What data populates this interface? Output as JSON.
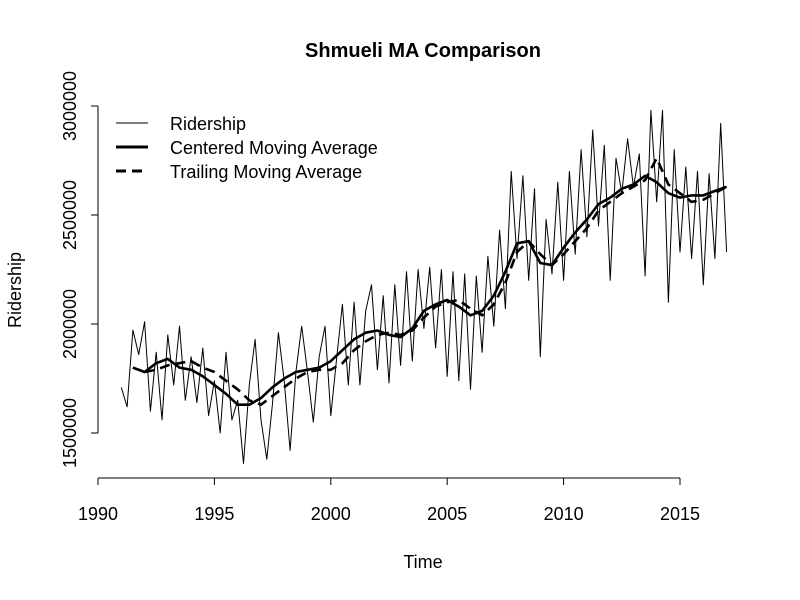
{
  "chart_data": {
    "type": "line",
    "title": "Shmueli MA Comparison",
    "xlabel": "Time",
    "ylabel": "Ridership",
    "xlim": [
      1990,
      2017.5
    ],
    "ylim": [
      1300000,
      3000000
    ],
    "x_ticks": [
      "1990",
      "1995",
      "2000",
      "2005",
      "2010",
      "2015"
    ],
    "y_ticks": [
      "1500000",
      "2000000",
      "2500000",
      "3000000"
    ],
    "legend_position": "top-left",
    "grid": false,
    "series": [
      {
        "name": "Ridership",
        "style": "solid-thin",
        "x": [
          1991.0,
          1991.25,
          1991.5,
          1991.75,
          1992.0,
          1992.25,
          1992.5,
          1992.75,
          1993.0,
          1993.25,
          1993.5,
          1993.75,
          1994.0,
          1994.25,
          1994.5,
          1994.75,
          1995.0,
          1995.25,
          1995.5,
          1995.75,
          1996.0,
          1996.25,
          1996.5,
          1996.75,
          1997.0,
          1997.25,
          1997.5,
          1997.75,
          1998.0,
          1998.25,
          1998.5,
          1998.75,
          1999.0,
          1999.25,
          1999.5,
          1999.75,
          2000.0,
          2000.25,
          2000.5,
          2000.75,
          2001.0,
          2001.25,
          2001.5,
          2001.75,
          2002.0,
          2002.25,
          2002.5,
          2002.75,
          2003.0,
          2003.25,
          2003.5,
          2003.75,
          2004.0,
          2004.25,
          2004.5,
          2004.75,
          2005.0,
          2005.25,
          2005.5,
          2005.75,
          2006.0,
          2006.25,
          2006.5,
          2006.75,
          2007.0,
          2007.25,
          2007.5,
          2007.75,
          2008.0,
          2008.25,
          2008.5,
          2008.75,
          2009.0,
          2009.25,
          2009.5,
          2009.75,
          2010.0,
          2010.25,
          2010.5,
          2010.75,
          2011.0,
          2011.25,
          2011.5,
          2011.75,
          2012.0,
          2012.25,
          2012.5,
          2012.75,
          2013.0,
          2013.25,
          2013.5,
          2013.75,
          2014.0,
          2014.25,
          2014.5,
          2014.75,
          2015.0,
          2015.25,
          2015.5,
          2015.75,
          2016.0,
          2016.25,
          2016.5,
          2016.75,
          2017.0
        ],
        "values": [
          1709000,
          1620000,
          1972000,
          1860000,
          2010000,
          1600000,
          1870000,
          1560000,
          1950000,
          1720000,
          1990000,
          1650000,
          1850000,
          1640000,
          1890000,
          1580000,
          1740000,
          1500000,
          1870000,
          1560000,
          1650000,
          1360000,
          1720000,
          1930000,
          1560000,
          1380000,
          1640000,
          1960000,
          1740000,
          1420000,
          1780000,
          1990000,
          1780000,
          1550000,
          1850000,
          1990000,
          1580000,
          1840000,
          2090000,
          1720000,
          2100000,
          1720000,
          2060000,
          2180000,
          1790000,
          2130000,
          1730000,
          2180000,
          1810000,
          2240000,
          1830000,
          2250000,
          1980000,
          2260000,
          1890000,
          2250000,
          1760000,
          2240000,
          1740000,
          2230000,
          1700000,
          2220000,
          1870000,
          2310000,
          1990000,
          2430000,
          2070000,
          2700000,
          2300000,
          2680000,
          2200000,
          2620000,
          1850000,
          2480000,
          2230000,
          2650000,
          2200000,
          2700000,
          2320000,
          2800000,
          2400000,
          2890000,
          2450000,
          2820000,
          2200000,
          2760000,
          2600000,
          2850000,
          2630000,
          2780000,
          2220000,
          2980000,
          2560000,
          2980000,
          2100000,
          2800000,
          2330000,
          2720000,
          2300000,
          2700000,
          2180000,
          2690000,
          2300000,
          2920000,
          2330000
        ]
      },
      {
        "name": "Centered Moving Average",
        "style": "solid-thick",
        "x": [
          1991.5,
          1992.0,
          1992.5,
          1993.0,
          1993.5,
          1994.0,
          1994.5,
          1995.0,
          1995.5,
          1996.0,
          1996.5,
          1997.0,
          1997.5,
          1998.0,
          1998.5,
          1999.0,
          1999.5,
          2000.0,
          2000.5,
          2001.0,
          2001.5,
          2002.0,
          2002.5,
          2003.0,
          2003.5,
          2004.0,
          2004.5,
          2005.0,
          2005.5,
          2006.0,
          2006.5,
          2007.0,
          2007.5,
          2008.0,
          2008.5,
          2009.0,
          2009.5,
          2010.0,
          2010.5,
          2011.0,
          2011.5,
          2012.0,
          2012.5,
          2013.0,
          2013.5,
          2014.0,
          2014.5,
          2015.0,
          2015.5,
          2016.0,
          2016.5,
          2017.0
        ],
        "values": [
          1800000,
          1780000,
          1820000,
          1840000,
          1800000,
          1790000,
          1760000,
          1720000,
          1680000,
          1630000,
          1630000,
          1660000,
          1710000,
          1750000,
          1780000,
          1790000,
          1800000,
          1830000,
          1880000,
          1930000,
          1960000,
          1970000,
          1950000,
          1940000,
          1980000,
          2060000,
          2090000,
          2110000,
          2080000,
          2040000,
          2060000,
          2130000,
          2240000,
          2370000,
          2380000,
          2280000,
          2270000,
          2350000,
          2420000,
          2480000,
          2550000,
          2580000,
          2620000,
          2640000,
          2680000,
          2650000,
          2600000,
          2580000,
          2590000,
          2590000,
          2610000,
          2630000
        ]
      },
      {
        "name": "Trailing Moving Average",
        "style": "dashed-thick",
        "x": [
          1992.0,
          1992.5,
          1993.0,
          1993.5,
          1994.0,
          1994.5,
          1995.0,
          1995.5,
          1996.0,
          1996.5,
          1997.0,
          1997.5,
          1998.0,
          1998.5,
          1999.0,
          1999.5,
          2000.0,
          2000.5,
          2001.0,
          2001.5,
          2002.0,
          2002.5,
          2003.0,
          2003.5,
          2004.0,
          2004.5,
          2005.0,
          2005.5,
          2006.0,
          2006.5,
          2007.0,
          2007.5,
          2008.0,
          2008.5,
          2009.0,
          2009.5,
          2010.0,
          2010.5,
          2011.0,
          2011.5,
          2012.0,
          2012.5,
          2013.0,
          2013.5,
          2014.0,
          2014.5,
          2015.0,
          2015.5,
          2016.0,
          2016.5,
          2017.0
        ],
        "values": [
          1780000,
          1790000,
          1810000,
          1820000,
          1830000,
          1800000,
          1780000,
          1740000,
          1700000,
          1650000,
          1630000,
          1670000,
          1710000,
          1750000,
          1780000,
          1790000,
          1790000,
          1820000,
          1880000,
          1920000,
          1950000,
          1960000,
          1950000,
          1970000,
          2030000,
          2080000,
          2100000,
          2110000,
          2070000,
          2040000,
          2090000,
          2190000,
          2330000,
          2380000,
          2320000,
          2270000,
          2320000,
          2380000,
          2440000,
          2520000,
          2560000,
          2600000,
          2630000,
          2660000,
          2760000,
          2640000,
          2600000,
          2560000,
          2570000,
          2600000,
          2630000
        ]
      }
    ]
  }
}
